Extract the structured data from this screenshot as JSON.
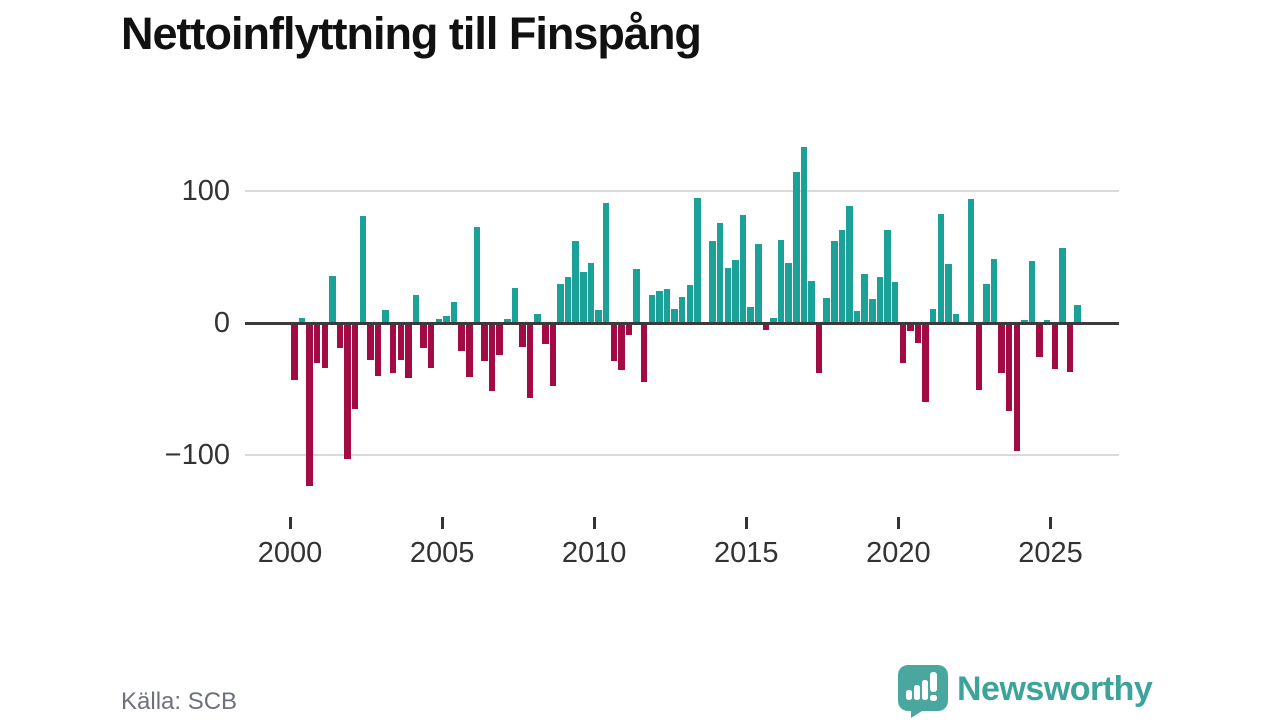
{
  "title": "Nettoinflyttning till Finspång",
  "source_label": "Källa: SCB",
  "brand": {
    "name": "Newsworthy"
  },
  "colors": {
    "positive": "#1ba197",
    "negative": "#a30b44",
    "axis": "#3b3b3b",
    "gridline": "#d9d9d9",
    "tick_text": "#333333",
    "brand_teal": "#3da49c",
    "badge_teal": "#4aa7a0"
  },
  "chart_data": {
    "type": "bar",
    "title": "Nettoinflyttning till Finspång",
    "frequency": "quarterly",
    "start_year": 2000,
    "x_tick_labels": [
      "2000",
      "2005",
      "2010",
      "2015",
      "2020",
      "2025"
    ],
    "y_ticks": [
      100,
      0,
      -100
    ],
    "y_tick_labels": [
      "100",
      "0",
      "−100"
    ],
    "ylim": [
      -140,
      150
    ],
    "grid": "horizontal-only",
    "legend": "none",
    "values": [
      -43,
      4,
      -124,
      -30,
      -34,
      36,
      -19,
      -103,
      -65,
      81,
      -28,
      -40,
      10,
      -38,
      -28,
      -42,
      21,
      -19,
      -34,
      3,
      5,
      16,
      -21,
      -41,
      73,
      -29,
      -52,
      -24,
      3,
      27,
      -18,
      -57,
      7,
      -16,
      -48,
      30,
      35,
      62,
      39,
      46,
      10,
      91,
      -29,
      -36,
      -9,
      41,
      -45,
      21,
      24,
      26,
      11,
      20,
      29,
      95,
      0,
      62,
      76,
      42,
      48,
      82,
      12,
      60,
      -5,
      4,
      63,
      46,
      115,
      134,
      32,
      -38,
      19,
      62,
      71,
      89,
      9,
      37,
      18,
      35,
      71,
      31,
      -30,
      -6,
      -15,
      -60,
      11,
      83,
      45,
      7,
      0,
      94,
      -51,
      30,
      49,
      -38,
      -67,
      -97,
      2,
      47,
      -26,
      2,
      -35,
      57,
      -37,
      14
    ]
  }
}
